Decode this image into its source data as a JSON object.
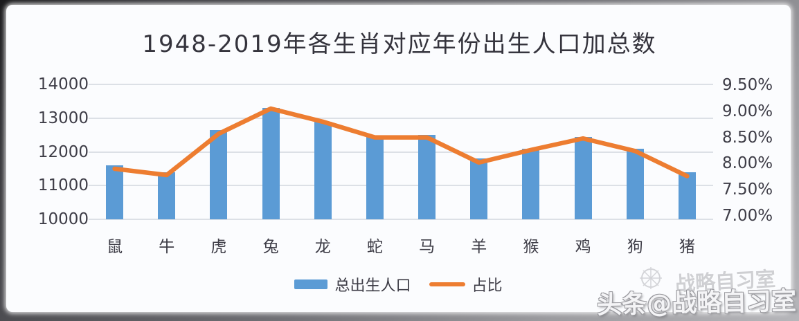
{
  "header": {
    "title": "1948-2019年各生肖对应年份出生人口加总数"
  },
  "chart_data": {
    "type": "bar",
    "subtype": "combo-bar-line-dual-axis",
    "title": "1948-2019年各生肖对应年份出生人口加总数",
    "categories": [
      "鼠",
      "牛",
      "虎",
      "兔",
      "龙",
      "蛇",
      "马",
      "羊",
      "猴",
      "鸡",
      "狗",
      "猪"
    ],
    "series": [
      {
        "name": "总出生人口",
        "type": "bar",
        "axis": "left",
        "color": "#5B9BD5",
        "values": [
          11600,
          11400,
          12650,
          13300,
          12900,
          12450,
          12500,
          11800,
          12100,
          12450,
          12100,
          11400
        ]
      },
      {
        "name": "占比",
        "type": "line",
        "axis": "right",
        "color": "#ED7D31",
        "values": [
          7.9,
          7.78,
          8.57,
          9.05,
          8.8,
          8.5,
          8.5,
          8.02,
          8.26,
          8.48,
          8.24,
          7.76
        ]
      }
    ],
    "left_axis": {
      "min": 10000,
      "max": 14000,
      "step": 1000,
      "ticks": [
        "14000",
        "13000",
        "12000",
        "11000",
        "10000"
      ]
    },
    "right_axis": {
      "min": 7.0,
      "max": 9.5,
      "step": 0.5,
      "ticks": [
        "9.50%",
        "9.00%",
        "8.50%",
        "8.00%",
        "7.50%",
        "7.00%"
      ]
    },
    "grid": true,
    "legend_position": "bottom"
  },
  "legend": {
    "items": [
      {
        "label": "总出生人口",
        "swatch": "bar",
        "color": "#5B9BD5"
      },
      {
        "label": "占比",
        "swatch": "line",
        "color": "#ED7D31"
      }
    ]
  },
  "watermark": {
    "faint_text": "战略自习室",
    "main_text": "头条@战略自习室"
  }
}
